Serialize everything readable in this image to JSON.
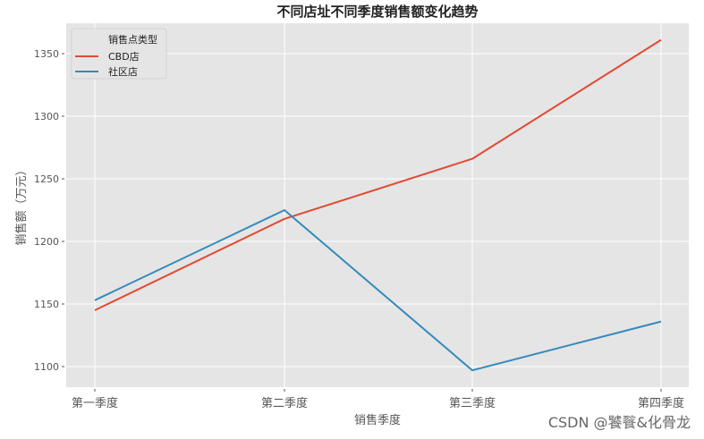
{
  "chart_data": {
    "type": "line",
    "title": "不同店址不同季度销售额变化趋势",
    "xlabel": "销售季度",
    "ylabel": "销售额（万元）",
    "categories": [
      "第一季度",
      "第二季度",
      "第三季度",
      "第四季度"
    ],
    "series": [
      {
        "name": "CBD店",
        "color": "#E24A33",
        "values": [
          1145,
          1218,
          1266,
          1361
        ]
      },
      {
        "name": "社区店",
        "color": "#348ABD",
        "values": [
          1153,
          1225,
          1097,
          1136
        ]
      }
    ],
    "yticks": [
      1100,
      1150,
      1200,
      1250,
      1300,
      1350
    ],
    "ylim": [
      1083,
      1374
    ],
    "grid": true,
    "background": "#E5E5E5",
    "legend": {
      "title": "销售点类型",
      "position": "upper left"
    }
  },
  "watermark": "CSDN @饕餮&化骨龙"
}
